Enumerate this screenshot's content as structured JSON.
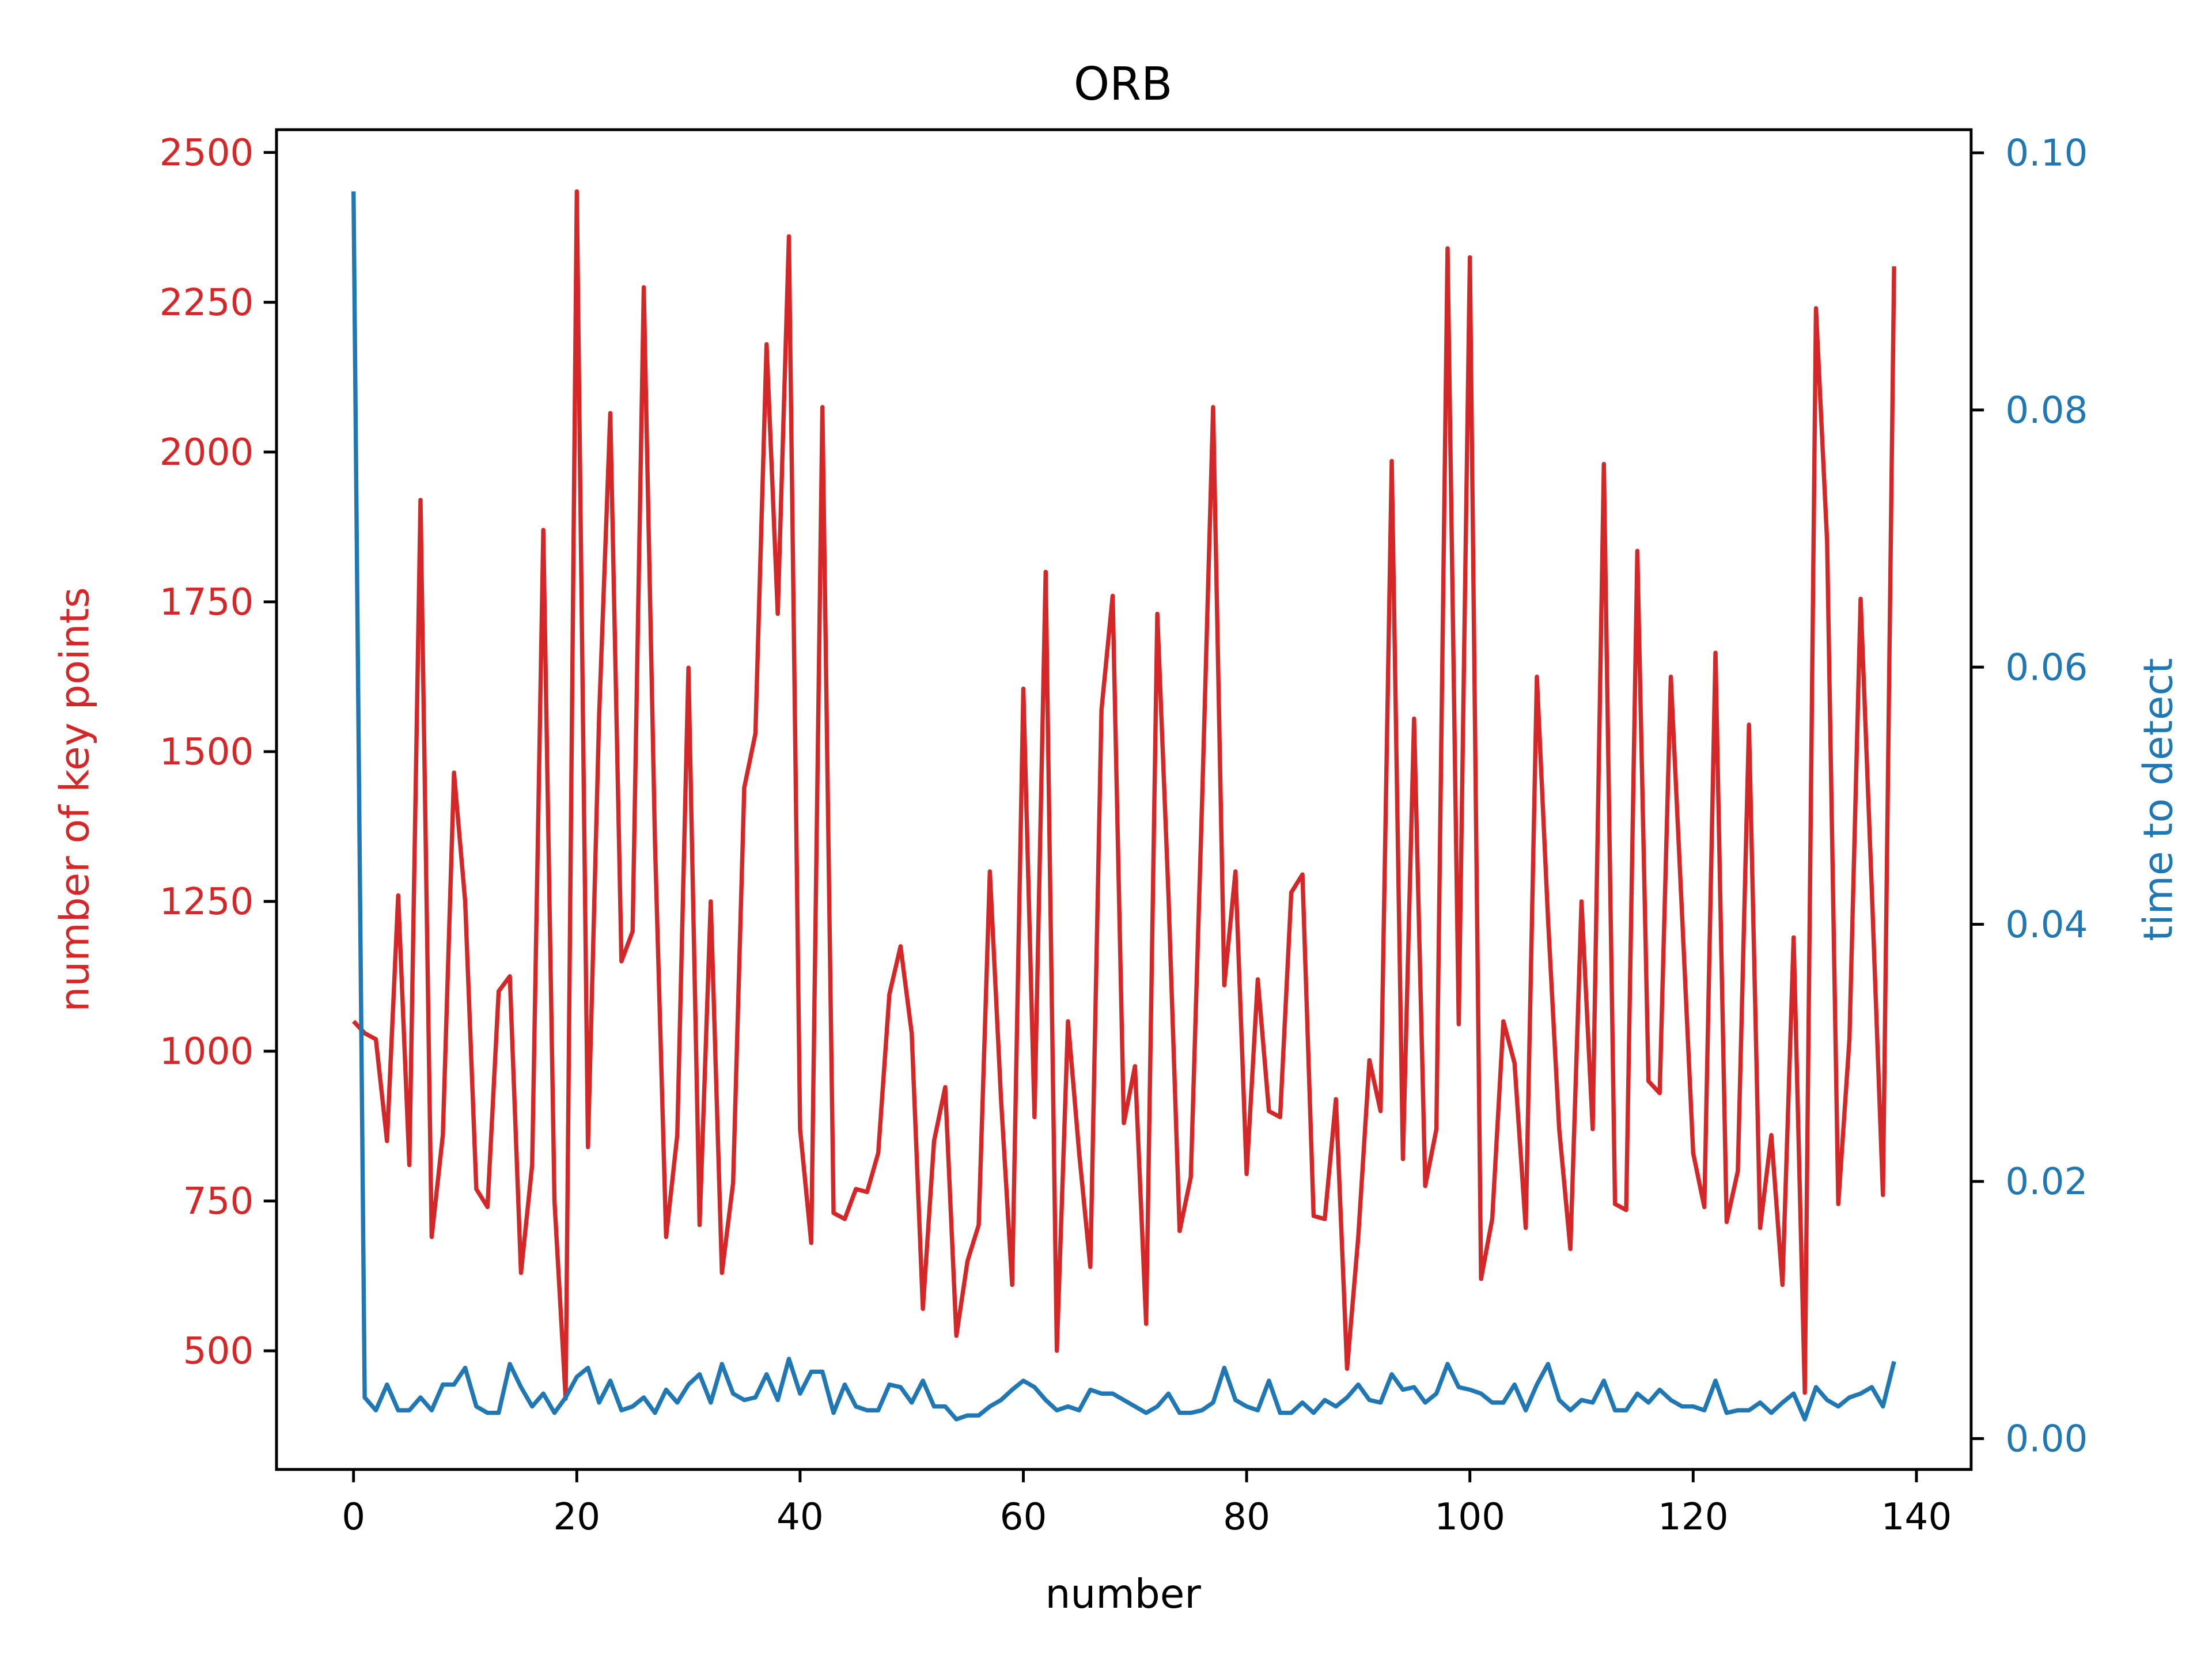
{
  "chart_data": {
    "type": "line",
    "title": "ORB",
    "x_label": "number",
    "y_label": "number of key points",
    "y2_label": "time to detect",
    "x": [
      0,
      1,
      2,
      3,
      4,
      5,
      6,
      7,
      8,
      9,
      10,
      11,
      12,
      13,
      14,
      15,
      16,
      17,
      18,
      19,
      20,
      21,
      22,
      23,
      24,
      25,
      26,
      27,
      28,
      29,
      30,
      31,
      32,
      33,
      34,
      35,
      36,
      37,
      38,
      39,
      40,
      41,
      42,
      43,
      44,
      45,
      46,
      47,
      48,
      49,
      50,
      51,
      52,
      53,
      54,
      55,
      56,
      57,
      58,
      59,
      60,
      61,
      62,
      63,
      64,
      65,
      66,
      67,
      68,
      69,
      70,
      71,
      72,
      73,
      74,
      75,
      76,
      77,
      78,
      79,
      80,
      81,
      82,
      83,
      84,
      85,
      86,
      87,
      88,
      89,
      90,
      91,
      92,
      93,
      94,
      95,
      96,
      97,
      98,
      99,
      100,
      101,
      102,
      103,
      104,
      105,
      106,
      107,
      108,
      109,
      110,
      111,
      112,
      113,
      114,
      115,
      116,
      117,
      118,
      119,
      120,
      121,
      122,
      123,
      124,
      125,
      126,
      127,
      128,
      129,
      130,
      131,
      132,
      133,
      134,
      135,
      136,
      137,
      138
    ],
    "series": [
      {
        "name": "number of key points",
        "color": "#d62728",
        "axis": "y",
        "values": [
          1050,
          1030,
          1020,
          850,
          1260,
          810,
          1920,
          690,
          860,
          1465,
          1250,
          770,
          740,
          1100,
          1125,
          630,
          810,
          1870,
          750,
          420,
          2435,
          840,
          1560,
          2065,
          1150,
          1200,
          2275,
          1350,
          690,
          860,
          1640,
          710,
          1250,
          630,
          780,
          1440,
          1530,
          2180,
          1730,
          2360,
          870,
          680,
          2075,
          730,
          720,
          770,
          765,
          830,
          1095,
          1175,
          1030,
          570,
          850,
          940,
          525,
          650,
          710,
          1300,
          920,
          610,
          1605,
          890,
          1800,
          500,
          1050,
          830,
          640,
          1570,
          1760,
          880,
          975,
          545,
          1730,
          1260,
          700,
          790,
          1410,
          2075,
          1110,
          1300,
          795,
          1120,
          900,
          890,
          1265,
          1295,
          725,
          720,
          920,
          470,
          690,
          985,
          900,
          1985,
          820,
          1555,
          775,
          870,
          2340,
          1045,
          2325,
          620,
          720,
          1050,
          980,
          705,
          1625,
          1220,
          870,
          670,
          1250,
          870,
          1980,
          745,
          735,
          1835,
          950,
          930,
          1625,
          1230,
          830,
          740,
          1665,
          715,
          800,
          1545,
          705,
          860,
          610,
          1190,
          430,
          2240,
          1850,
          745,
          1020,
          1755,
          1270,
          760,
          2310
        ]
      },
      {
        "name": "time to detect",
        "color": "#1f77b4",
        "axis": "y2",
        "values": [
          0.097,
          0.0032,
          0.0022,
          0.0042,
          0.0022,
          0.0022,
          0.0032,
          0.0022,
          0.0042,
          0.0042,
          0.0055,
          0.0025,
          0.002,
          0.002,
          0.0058,
          0.004,
          0.0025,
          0.0035,
          0.002,
          0.0032,
          0.0048,
          0.0055,
          0.0028,
          0.0045,
          0.0022,
          0.0025,
          0.0032,
          0.002,
          0.0038,
          0.0028,
          0.0042,
          0.005,
          0.0028,
          0.0058,
          0.0035,
          0.003,
          0.0032,
          0.005,
          0.003,
          0.0062,
          0.0035,
          0.0052,
          0.0052,
          0.002,
          0.0042,
          0.0025,
          0.0022,
          0.0022,
          0.0042,
          0.004,
          0.0028,
          0.0045,
          0.0025,
          0.0025,
          0.0015,
          0.0018,
          0.0018,
          0.0025,
          0.003,
          0.0038,
          0.0045,
          0.004,
          0.003,
          0.0022,
          0.0025,
          0.0022,
          0.0038,
          0.0035,
          0.0035,
          0.003,
          0.0025,
          0.002,
          0.0025,
          0.0035,
          0.002,
          0.002,
          0.0022,
          0.0028,
          0.0055,
          0.003,
          0.0025,
          0.0022,
          0.0045,
          0.002,
          0.002,
          0.0028,
          0.002,
          0.003,
          0.0025,
          0.0032,
          0.0042,
          0.003,
          0.0028,
          0.005,
          0.0038,
          0.004,
          0.0028,
          0.0035,
          0.0058,
          0.004,
          0.0038,
          0.0035,
          0.0028,
          0.0028,
          0.0042,
          0.0022,
          0.0042,
          0.0058,
          0.003,
          0.0022,
          0.003,
          0.0028,
          0.0045,
          0.0022,
          0.0022,
          0.0035,
          0.0028,
          0.0038,
          0.003,
          0.0025,
          0.0025,
          0.0022,
          0.0045,
          0.002,
          0.0022,
          0.0022,
          0.0028,
          0.002,
          0.0028,
          0.0035,
          0.0015,
          0.004,
          0.003,
          0.0025,
          0.0032,
          0.0035,
          0.004,
          0.0025,
          0.006
        ]
      }
    ],
    "xlim": [
      -6.9,
      144.9
    ],
    "xticks": [
      0,
      20,
      40,
      60,
      80,
      100,
      120,
      140
    ],
    "ylim": [
      302,
      2538
    ],
    "yticks": [
      500,
      750,
      1000,
      1250,
      1500,
      1750,
      2000,
      2250,
      2500
    ],
    "y2lim": [
      -0.0024,
      0.1018
    ],
    "y2ticks": [
      {
        "value": 0,
        "label": "0.00"
      },
      {
        "value": 0.02,
        "label": "0.02"
      },
      {
        "value": 0.04,
        "label": "0.04"
      },
      {
        "value": 0.06,
        "label": "0.06"
      },
      {
        "value": 0.08,
        "label": "0.08"
      },
      {
        "value": 0.1,
        "label": "0.10"
      }
    ],
    "grid": false
  }
}
